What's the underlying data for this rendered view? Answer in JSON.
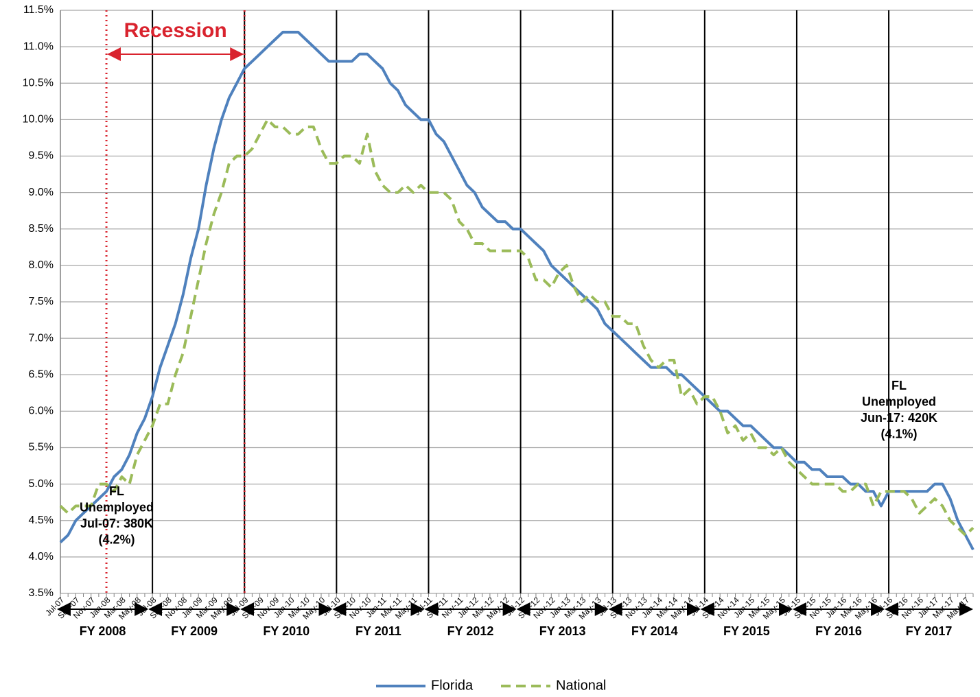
{
  "chart_data": {
    "type": "line",
    "categories": [
      "Jul-07",
      null,
      "Sep-07",
      null,
      "Nov-07",
      null,
      "Jan-08",
      null,
      "Mar-08",
      null,
      "May-08",
      null,
      "Jul-08",
      null,
      "Sep-08",
      null,
      "Nov-08",
      null,
      "Jan-09",
      null,
      "Mar-09",
      null,
      "May-09",
      null,
      "Jul-09",
      null,
      "Sep-09",
      null,
      "Nov-09",
      null,
      "Jan-10",
      null,
      "Mar-10",
      null,
      "May-10",
      null,
      "Jul-10",
      null,
      "Sep-10",
      null,
      "Nov-10",
      null,
      "Jan-11",
      null,
      "Mar-11",
      null,
      "May-11",
      null,
      "Jul-11",
      null,
      "Sep-11",
      null,
      "Nov-11",
      null,
      "Jan-12",
      null,
      "Mar-12",
      null,
      "May-12",
      null,
      "Jul-12",
      null,
      "Sep-12",
      null,
      "Nov-12",
      null,
      "Jan-13",
      null,
      "Mar-13",
      null,
      "May-13",
      null,
      "Jul-13",
      null,
      "Sep-13",
      null,
      "Nov-13",
      null,
      "Jan-14",
      null,
      "Mar-14",
      null,
      "May-14",
      null,
      "Jul-14",
      null,
      "Sep-14",
      null,
      "Nov-14",
      null,
      "Jan-15",
      null,
      "Mar-15",
      null,
      "May-15",
      null,
      "Jul-15",
      null,
      "Sep-15",
      null,
      "Nov-15",
      null,
      "Jan-16",
      null,
      "Mar-16",
      null,
      "May-16",
      null,
      "Jul-16",
      null,
      "Sep-16",
      null,
      "Nov-16",
      null,
      "Jan-17",
      null,
      "Mar-17",
      null,
      "May-17",
      null
    ],
    "series": [
      {
        "name": "Florida",
        "color": "#4f81bd",
        "dashed": false,
        "values": [
          4.2,
          4.3,
          4.5,
          4.6,
          4.7,
          4.8,
          4.9,
          5.1,
          5.2,
          5.4,
          5.7,
          5.9,
          6.2,
          6.6,
          6.9,
          7.2,
          7.6,
          8.1,
          8.5,
          9.1,
          9.6,
          10.0,
          10.3,
          10.5,
          10.7,
          10.8,
          10.9,
          11.0,
          11.1,
          11.2,
          11.2,
          11.2,
          11.1,
          11.0,
          10.9,
          10.8,
          10.8,
          10.8,
          10.8,
          10.9,
          10.9,
          10.8,
          10.7,
          10.5,
          10.4,
          10.2,
          10.1,
          10.0,
          10.0,
          9.8,
          9.7,
          9.5,
          9.3,
          9.1,
          9.0,
          8.8,
          8.7,
          8.6,
          8.6,
          8.5,
          8.5,
          8.4,
          8.3,
          8.2,
          8.0,
          7.9,
          7.8,
          7.7,
          7.6,
          7.5,
          7.4,
          7.2,
          7.1,
          7.0,
          6.9,
          6.8,
          6.7,
          6.6,
          6.6,
          6.6,
          6.5,
          6.5,
          6.4,
          6.3,
          6.2,
          6.1,
          6.0,
          6.0,
          5.9,
          5.8,
          5.8,
          5.7,
          5.6,
          5.5,
          5.5,
          5.4,
          5.3,
          5.3,
          5.2,
          5.2,
          5.1,
          5.1,
          5.1,
          5.0,
          5.0,
          4.9,
          4.9,
          4.7,
          4.9,
          4.9,
          4.9,
          4.9,
          4.9,
          4.9,
          5.0,
          5.0,
          4.8,
          4.5,
          4.3,
          4.1
        ]
      },
      {
        "name": "National",
        "color": "#9bbb59",
        "dashed": true,
        "values": [
          4.7,
          4.6,
          4.7,
          4.7,
          4.7,
          5.0,
          5.0,
          4.9,
          5.1,
          5.0,
          5.4,
          5.6,
          5.8,
          6.1,
          6.1,
          6.5,
          6.8,
          7.3,
          7.8,
          8.3,
          8.7,
          9.0,
          9.4,
          9.5,
          9.5,
          9.6,
          9.8,
          10.0,
          9.9,
          9.9,
          9.8,
          9.8,
          9.9,
          9.9,
          9.6,
          9.4,
          9.4,
          9.5,
          9.5,
          9.4,
          9.8,
          9.3,
          9.1,
          9.0,
          9.0,
          9.1,
          9.0,
          9.1,
          9.0,
          9.0,
          9.0,
          8.9,
          8.6,
          8.5,
          8.3,
          8.3,
          8.2,
          8.2,
          8.2,
          8.2,
          8.2,
          8.1,
          7.8,
          7.8,
          7.7,
          7.9,
          8.0,
          7.7,
          7.5,
          7.6,
          7.5,
          7.5,
          7.3,
          7.3,
          7.2,
          7.2,
          6.9,
          6.7,
          6.6,
          6.7,
          6.7,
          6.2,
          6.3,
          6.1,
          6.2,
          6.2,
          6.0,
          5.7,
          5.8,
          5.6,
          5.7,
          5.5,
          5.5,
          5.4,
          5.5,
          5.3,
          5.2,
          5.1,
          5.0,
          5.0,
          5.0,
          5.0,
          4.9,
          4.9,
          5.0,
          5.0,
          4.7,
          4.9,
          4.9,
          4.9,
          4.9,
          4.8,
          4.6,
          4.7,
          4.8,
          4.7,
          4.5,
          4.4,
          4.3,
          4.4
        ]
      }
    ],
    "ylim": [
      3.5,
      11.5
    ],
    "yticks": [
      {
        "value": 3.5,
        "label": "3.5%"
      },
      {
        "value": 4,
        "label": "4.0%"
      },
      {
        "value": 4.5,
        "label": "4.5%"
      },
      {
        "value": 5,
        "label": "5.0%"
      },
      {
        "value": 5.5,
        "label": "5.5%"
      },
      {
        "value": 6,
        "label": "6.0%"
      },
      {
        "value": 6.5,
        "label": "6.5%"
      },
      {
        "value": 7,
        "label": "7.0%"
      },
      {
        "value": 7.5,
        "label": "7.5%"
      },
      {
        "value": 8,
        "label": "8.0%"
      },
      {
        "value": 8.5,
        "label": "8.5%"
      },
      {
        "value": 9,
        "label": "9.0%"
      },
      {
        "value": 9.5,
        "label": "9.5%"
      },
      {
        "value": 10,
        "label": "10.0%"
      },
      {
        "value": 10.5,
        "label": "10.5%"
      },
      {
        "value": 11,
        "label": "11.0%"
      },
      {
        "value": 11.5,
        "label": "11.5%"
      }
    ],
    "grid": true,
    "fiscal_years": [
      "FY 2008",
      "FY 2009",
      "FY 2010",
      "FY 2011",
      "FY 2012",
      "FY 2013",
      "FY 2014",
      "FY 2015",
      "FY 2016",
      "FY 2017"
    ],
    "recession": {
      "label": "Recession",
      "start": "Jan-08",
      "end": "Jul-09"
    },
    "annotations": [
      {
        "lines": [
          "FL",
          "Unemployed",
          "Jul-07: 380K",
          "(4.2%)"
        ]
      },
      {
        "lines": [
          "FL",
          "Unemployed",
          "Jun-17: 420K",
          "(4.1%)"
        ]
      }
    ],
    "legend": "bottom"
  }
}
